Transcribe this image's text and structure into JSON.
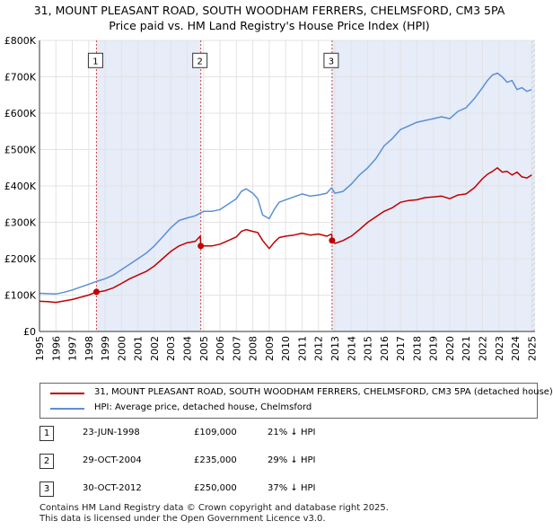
{
  "title_line1": "31, MOUNT PLEASANT ROAD, SOUTH WOODHAM FERRERS, CHELMSFORD, CM3 5PA",
  "title_line2": "Price paid vs. HM Land Registry's House Price Index (HPI)",
  "chart_data": {
    "type": "line",
    "title": "31, MOUNT PLEASANT ROAD, SOUTH WOODHAM FERRERS, CHELMSFORD, CM3 5PA",
    "subtitle": "Price paid vs. HM Land Registry's House Price Index (HPI)",
    "xlim": [
      1995,
      2025.2
    ],
    "ylim": [
      0,
      800000
    ],
    "y_ticks": [
      0,
      100000,
      200000,
      300000,
      400000,
      500000,
      600000,
      700000,
      800000
    ],
    "y_tick_labels": [
      "£0",
      "£100K",
      "£200K",
      "£300K",
      "£400K",
      "£500K",
      "£600K",
      "£700K",
      "£800K"
    ],
    "x_ticks": [
      1995,
      1996,
      1997,
      1998,
      1999,
      2000,
      2001,
      2002,
      2003,
      2004,
      2005,
      2006,
      2007,
      2008,
      2009,
      2010,
      2011,
      2012,
      2013,
      2014,
      2015,
      2016,
      2017,
      2018,
      2019,
      2020,
      2021,
      2022,
      2023,
      2024,
      2025
    ],
    "x_tick_labels": [
      "1995",
      "1996",
      "1997",
      "1998",
      "1999",
      "2000",
      "2001",
      "2002",
      "2003",
      "2004",
      "2005",
      "2006",
      "2007",
      "2008",
      "2009",
      "2010",
      "2011",
      "2012",
      "2013",
      "2014",
      "2015",
      "2016",
      "2017",
      "2018",
      "2019",
      "2020",
      "2021",
      "2022",
      "2023",
      "2024",
      "2025"
    ],
    "grid": true,
    "series": [
      {
        "name": "31, MOUNT PLEASANT ROAD, SOUTH WOODHAM FERRERS, CHELMSFORD, CM3 5PA (detached house)",
        "color": "#c00000",
        "x": [
          1995.0,
          1995.5,
          1996.0,
          1996.5,
          1997.0,
          1997.5,
          1998.0,
          1998.47,
          1998.5,
          1999.0,
          1999.5,
          2000.0,
          2000.5,
          2001.0,
          2001.5,
          2002.0,
          2002.5,
          2003.0,
          2003.5,
          2004.0,
          2004.5,
          2004.8,
          2004.83,
          2005.0,
          2005.5,
          2006.0,
          2006.5,
          2007.0,
          2007.3,
          2007.6,
          2008.0,
          2008.3,
          2008.6,
          2009.0,
          2009.3,
          2009.6,
          2010.0,
          2010.5,
          2011.0,
          2011.5,
          2012.0,
          2012.5,
          2012.8,
          2012.83,
          2013.0,
          2013.5,
          2014.0,
          2014.5,
          2015.0,
          2015.5,
          2016.0,
          2016.5,
          2017.0,
          2017.5,
          2018.0,
          2018.5,
          2019.0,
          2019.5,
          2020.0,
          2020.5,
          2021.0,
          2021.5,
          2022.0,
          2022.3,
          2022.6,
          2022.9,
          2023.2,
          2023.5,
          2023.8,
          2024.1,
          2024.4,
          2024.7,
          2025.0
        ],
        "values": [
          83000,
          82000,
          80000,
          84000,
          88000,
          94000,
          100000,
          109000,
          108000,
          112000,
          120000,
          132000,
          145000,
          155000,
          165000,
          180000,
          200000,
          220000,
          235000,
          244000,
          248000,
          262000,
          235000,
          235000,
          235000,
          240000,
          250000,
          260000,
          275000,
          280000,
          275000,
          272000,
          250000,
          228000,
          245000,
          258000,
          262000,
          265000,
          270000,
          265000,
          268000,
          262000,
          268000,
          250000,
          242000,
          250000,
          262000,
          280000,
          300000,
          315000,
          330000,
          340000,
          355000,
          360000,
          362000,
          368000,
          370000,
          372000,
          365000,
          375000,
          378000,
          395000,
          420000,
          432000,
          440000,
          450000,
          438000,
          440000,
          430000,
          438000,
          425000,
          422000,
          430000
        ]
      },
      {
        "name": "HPI: Average price, detached house, Chelmsford",
        "color": "#5b8fd6",
        "x": [
          1995.0,
          1995.5,
          1996.0,
          1996.5,
          1997.0,
          1997.5,
          1998.0,
          1998.5,
          1999.0,
          1999.5,
          2000.0,
          2000.5,
          2001.0,
          2001.5,
          2002.0,
          2002.5,
          2003.0,
          2003.5,
          2004.0,
          2004.5,
          2005.0,
          2005.5,
          2006.0,
          2006.5,
          2007.0,
          2007.3,
          2007.6,
          2008.0,
          2008.3,
          2008.6,
          2009.0,
          2009.3,
          2009.6,
          2010.0,
          2010.5,
          2011.0,
          2011.5,
          2012.0,
          2012.5,
          2012.8,
          2013.0,
          2013.5,
          2014.0,
          2014.5,
          2015.0,
          2015.5,
          2016.0,
          2016.5,
          2017.0,
          2017.5,
          2018.0,
          2018.5,
          2019.0,
          2019.5,
          2020.0,
          2020.5,
          2021.0,
          2021.5,
          2022.0,
          2022.3,
          2022.6,
          2022.9,
          2023.2,
          2023.5,
          2023.8,
          2024.1,
          2024.4,
          2024.7,
          2025.0
        ],
        "values": [
          105000,
          104000,
          103000,
          108000,
          114000,
          122000,
          130000,
          138000,
          145000,
          155000,
          170000,
          185000,
          200000,
          215000,
          235000,
          260000,
          285000,
          305000,
          312000,
          318000,
          330000,
          330000,
          335000,
          350000,
          365000,
          385000,
          392000,
          380000,
          365000,
          320000,
          310000,
          335000,
          355000,
          362000,
          370000,
          378000,
          372000,
          375000,
          380000,
          395000,
          380000,
          385000,
          405000,
          430000,
          450000,
          475000,
          510000,
          530000,
          555000,
          565000,
          575000,
          580000,
          585000,
          590000,
          585000,
          605000,
          615000,
          640000,
          670000,
          690000,
          705000,
          710000,
          700000,
          685000,
          690000,
          665000,
          670000,
          660000,
          665000
        ]
      }
    ],
    "sales": [
      {
        "label": "1",
        "x": 1998.47,
        "value": 109000
      },
      {
        "label": "2",
        "x": 2004.83,
        "value": 235000
      },
      {
        "label": "3",
        "x": 2012.83,
        "value": 250000
      }
    ],
    "sale_marker_y": 745000
  },
  "legend": {
    "items": [
      {
        "label": "31, MOUNT PLEASANT ROAD, SOUTH WOODHAM FERRERS, CHELMSFORD, CM3 5PA (detached house)",
        "color": "#c00000"
      },
      {
        "label": "HPI: Average price, detached house, Chelmsford",
        "color": "#5b8fd6"
      }
    ]
  },
  "sales_table": [
    {
      "badge": "1",
      "date": "23-JUN-1998",
      "price": "£109,000",
      "hpi": "21% ↓ HPI"
    },
    {
      "badge": "2",
      "date": "29-OCT-2004",
      "price": "£235,000",
      "hpi": "29% ↓ HPI"
    },
    {
      "badge": "3",
      "date": "30-OCT-2012",
      "price": "£250,000",
      "hpi": "37% ↓ HPI"
    }
  ],
  "footer": {
    "line1": "Contains HM Land Registry data © Crown copyright and database right 2025.",
    "line2": "This data is licensed under the Open Government Licence v3.0."
  }
}
